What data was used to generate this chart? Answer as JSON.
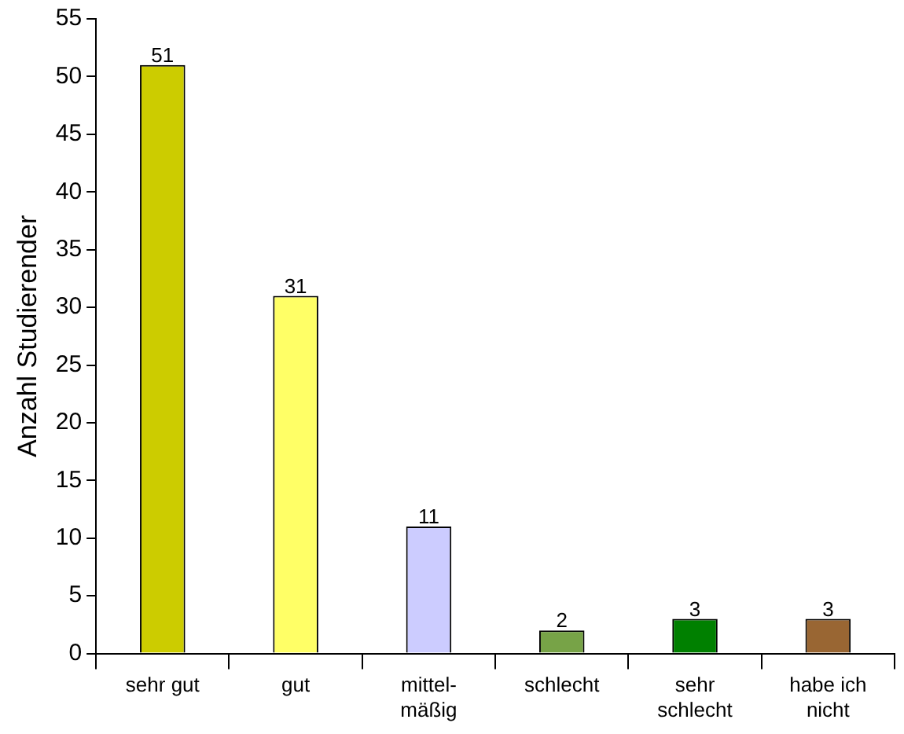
{
  "chart_data": {
    "type": "bar",
    "ylabel": "Anzahl Studierender",
    "categories": [
      "sehr gut",
      "gut",
      "mittel-\nmäßig",
      "schlecht",
      "sehr\nschlecht",
      "habe ich\nnicht"
    ],
    "values": [
      51,
      31,
      11,
      2,
      3,
      3
    ],
    "colors": [
      "#cccc00",
      "#ffff66",
      "#ccccff",
      "#77a347",
      "#008000",
      "#996633"
    ],
    "ylim": [
      0,
      55
    ],
    "yticks": [
      0,
      5,
      10,
      15,
      20,
      25,
      30,
      35,
      40,
      45,
      50,
      55
    ],
    "grid": false,
    "legend": false,
    "data_labels": true
  }
}
